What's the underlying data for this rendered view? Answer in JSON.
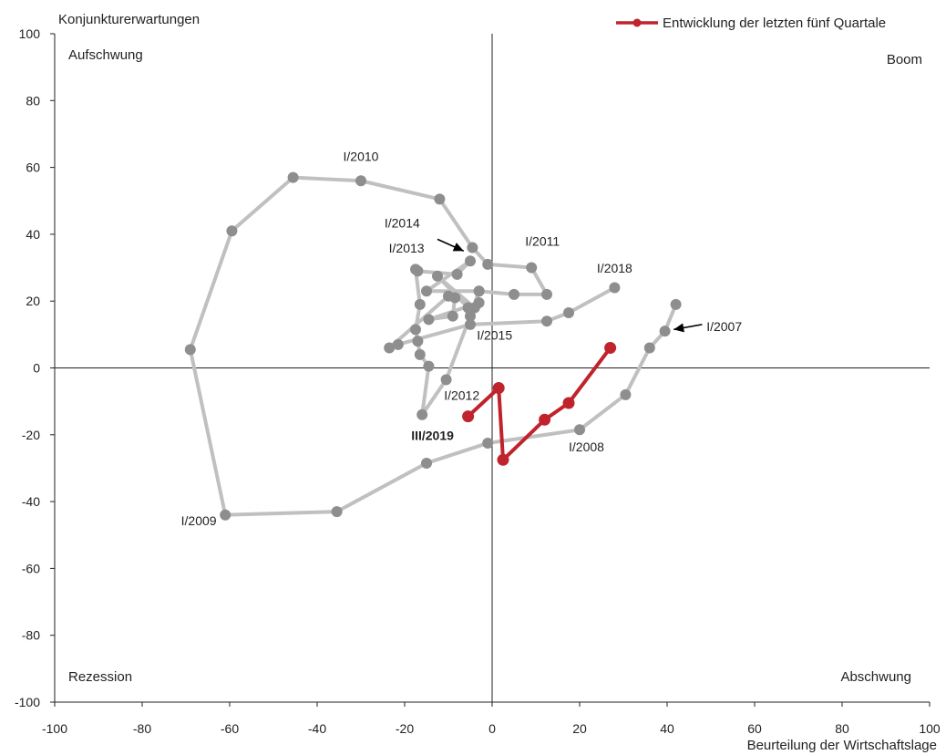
{
  "chart_data": {
    "type": "scatter",
    "xlabel": "Beurteilung der Wirtschaftslage",
    "ylabel": "Konjunkturerwartungen",
    "xlim": [
      -100,
      100
    ],
    "ylim": [
      -100,
      100
    ],
    "x_ticks": [
      -100,
      -80,
      -60,
      -40,
      -20,
      0,
      20,
      40,
      60,
      80,
      100
    ],
    "y_ticks": [
      100,
      80,
      60,
      40,
      20,
      0,
      -20,
      -40,
      -60,
      -80,
      -100
    ],
    "quadrants": {
      "top_left": "Aufschwung",
      "top_right": "Boom",
      "bottom_left": "Rezession",
      "bottom_right": "Abschwung"
    },
    "legend": {
      "label": "Entwicklung der letzten fünf Quartale",
      "position": "top-right"
    },
    "colors": {
      "history": "#c0c0c0",
      "history_point": "#8e8e8e",
      "recent": "#c0232b",
      "axis": "#222222"
    },
    "series": [
      {
        "points": [
          [
            42,
            19
          ],
          [
            39.5,
            11
          ],
          [
            36,
            6
          ],
          [
            30.5,
            -8
          ],
          [
            20,
            -18.5
          ],
          [
            -1,
            -22.5
          ],
          [
            -15,
            -28.5
          ],
          [
            -35.5,
            -43
          ],
          [
            -61,
            -44
          ],
          [
            -69,
            5.5
          ],
          [
            -59.5,
            41
          ],
          [
            -45.5,
            57
          ],
          [
            -30,
            56
          ],
          [
            -12,
            50.5
          ],
          [
            -4.5,
            36
          ],
          [
            -1,
            31
          ],
          [
            9,
            30
          ],
          [
            12.5,
            22
          ],
          [
            5,
            22
          ],
          [
            -3,
            23
          ],
          [
            -5,
            15.5
          ],
          [
            -10.5,
            -3.5
          ],
          [
            -16,
            -14
          ],
          [
            -14.5,
            0.5
          ],
          [
            -16.5,
            4
          ],
          [
            -17,
            8
          ],
          [
            -17.5,
            11.5
          ],
          [
            -16.5,
            19
          ],
          [
            -17.5,
            29.5
          ],
          [
            -17,
            29
          ],
          [
            -8,
            28
          ],
          [
            -5,
            32
          ],
          [
            -15,
            23
          ],
          [
            -3,
            23
          ],
          [
            -4,
            18
          ],
          [
            -12.5,
            27.5
          ],
          [
            -5.5,
            18
          ],
          [
            -3,
            19.5
          ],
          [
            -14.5,
            14.5
          ],
          [
            -9,
            15.5
          ],
          [
            -8.5,
            21
          ],
          [
            -10,
            21.5
          ],
          [
            -23.5,
            6
          ],
          [
            -21.5,
            7
          ],
          [
            -5,
            13
          ],
          [
            12.5,
            14
          ],
          [
            17.5,
            16.5
          ],
          [
            28,
            24
          ]
        ]
      },
      {
        "name": "Entwicklung der letzten fünf Quartale",
        "points": [
          [
            27,
            6
          ],
          [
            17.5,
            -10.5
          ],
          [
            12,
            -15.5
          ],
          [
            2.5,
            -27.5
          ],
          [
            1.5,
            -6
          ],
          [
            -5.5,
            -14.5
          ]
        ]
      }
    ],
    "annotations": [
      {
        "text": "I/2010",
        "x": -30,
        "y": 62,
        "anchor": "middle"
      },
      {
        "text": "I/2014",
        "x": -16.5,
        "y": 42,
        "anchor": "end"
      },
      {
        "text": "I/2013",
        "x": -15.5,
        "y": 34.5,
        "anchor": "end"
      },
      {
        "text": "I/2011",
        "x": 11.5,
        "y": 36.5,
        "anchor": "middle"
      },
      {
        "text": "I/2018",
        "x": 28,
        "y": 28.5,
        "anchor": "middle"
      },
      {
        "text": "I/2007",
        "x": 49,
        "y": 11,
        "anchor": "start"
      },
      {
        "text": "I/2015",
        "x": -3.5,
        "y": 8.5,
        "anchor": "start"
      },
      {
        "text": "I/2012",
        "x": -11,
        "y": -9.5,
        "anchor": "start"
      },
      {
        "text": "III/2019",
        "x": -18.5,
        "y": -21.5,
        "anchor": "start",
        "bold": true
      },
      {
        "text": "I/2008",
        "x": 17.5,
        "y": -25,
        "anchor": "start"
      },
      {
        "text": "I/2009",
        "x": -63,
        "y": -47,
        "anchor": "end"
      }
    ],
    "arrows": [
      {
        "from": [
          -12.5,
          38.5
        ],
        "to": [
          -6.5,
          35
        ]
      },
      {
        "from": [
          48,
          13
        ],
        "to": [
          41.5,
          11.5
        ]
      }
    ]
  }
}
